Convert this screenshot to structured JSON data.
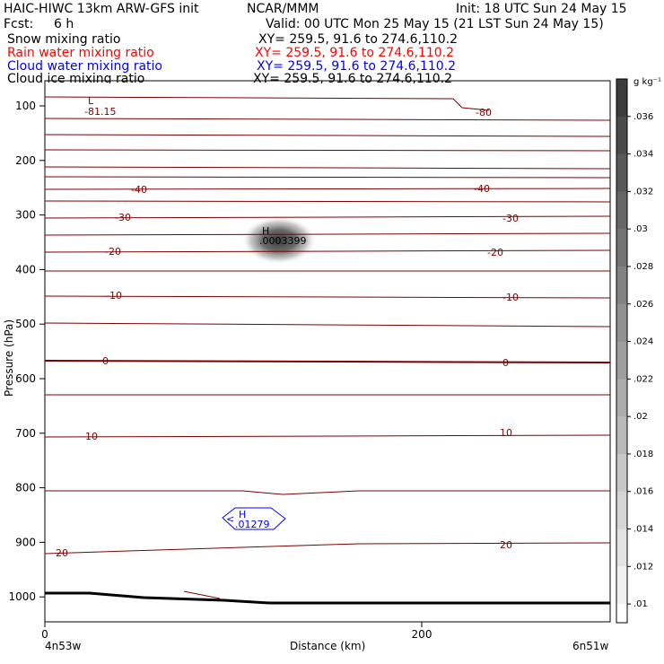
{
  "header": {
    "title_left": "HAIC-HIWC 13km ARW-GFS init",
    "center_org": "NCAR/MMM",
    "init": "Init: 18 UTC Sun 24 May 15",
    "fcst_label": "Fcst:",
    "fcst_value": "6 h",
    "valid": "Valid: 00 UTC Mon 25 May 15 (21 LST Sun 24 May 15)"
  },
  "fields": [
    {
      "label": "Snow mixing ratio",
      "xy": "XY= 259.5, 91.6 to 274.6,110.2",
      "color": "#000000"
    },
    {
      "label": "Rain water mixing ratio",
      "xy": "XY= 259.5, 91.6 to 274.6,110.2",
      "color": "#ff0000"
    },
    {
      "label": "Cloud water mixing ratio",
      "xy": "XY= 259.5, 91.6 to 274.6,110.2",
      "color": "#0000ff"
    },
    {
      "label": "Cloud ice mixing ratio",
      "xy": "XY= 259.5, 91.6 to 274.6,110.2",
      "color": "#000000"
    }
  ],
  "chart_data": {
    "type": "heatmap",
    "xlabel": "Distance (km)",
    "ylabel": "Pressure (hPa)",
    "xlim": [
      0,
      300
    ],
    "ylim": [
      1050,
      60
    ],
    "x_ticks": [
      0,
      200
    ],
    "y_ticks": [
      100,
      200,
      300,
      400,
      500,
      600,
      700,
      800,
      900,
      1000
    ],
    "x_endpoint_labels": [
      "4n53w",
      "6n51w"
    ],
    "temperature_contours": [
      {
        "label": "-81.15",
        "p": 110
      },
      {
        "label": "-80",
        "p": 110
      },
      {
        "label": "-40",
        "p": 250
      },
      {
        "label": "-30",
        "p": 305
      },
      {
        "label": "-20",
        "p": 365
      },
      {
        "label": "-10",
        "p": 448
      },
      {
        "label": "0",
        "p": 568
      },
      {
        "label": "10",
        "p": 700
      },
      {
        "label": "20",
        "p": 900
      }
    ],
    "extrema": [
      {
        "marker": "L",
        "value": "-81.15",
        "x": 25,
        "p": 95
      },
      {
        "marker": "H",
        "value": ".0003399",
        "x": 120,
        "p": 335
      },
      {
        "marker": "H",
        "value": ".01279",
        "x": 105,
        "p": 860
      }
    ],
    "colorbar": {
      "unit": "g kg⁻¹",
      "ticks": [
        ".036",
        ".034",
        ".032",
        ".03",
        ".028",
        ".026",
        ".024",
        ".022",
        ".02",
        ".018",
        ".016",
        ".014",
        ".012",
        ".01"
      ]
    },
    "cloud_ice_maximum": {
      "x": 120,
      "p": 360,
      "value": 0.0003399
    },
    "terrain_surface": [
      [
        0,
        995
      ],
      [
        100,
        1005
      ],
      [
        300,
        1010
      ]
    ]
  }
}
